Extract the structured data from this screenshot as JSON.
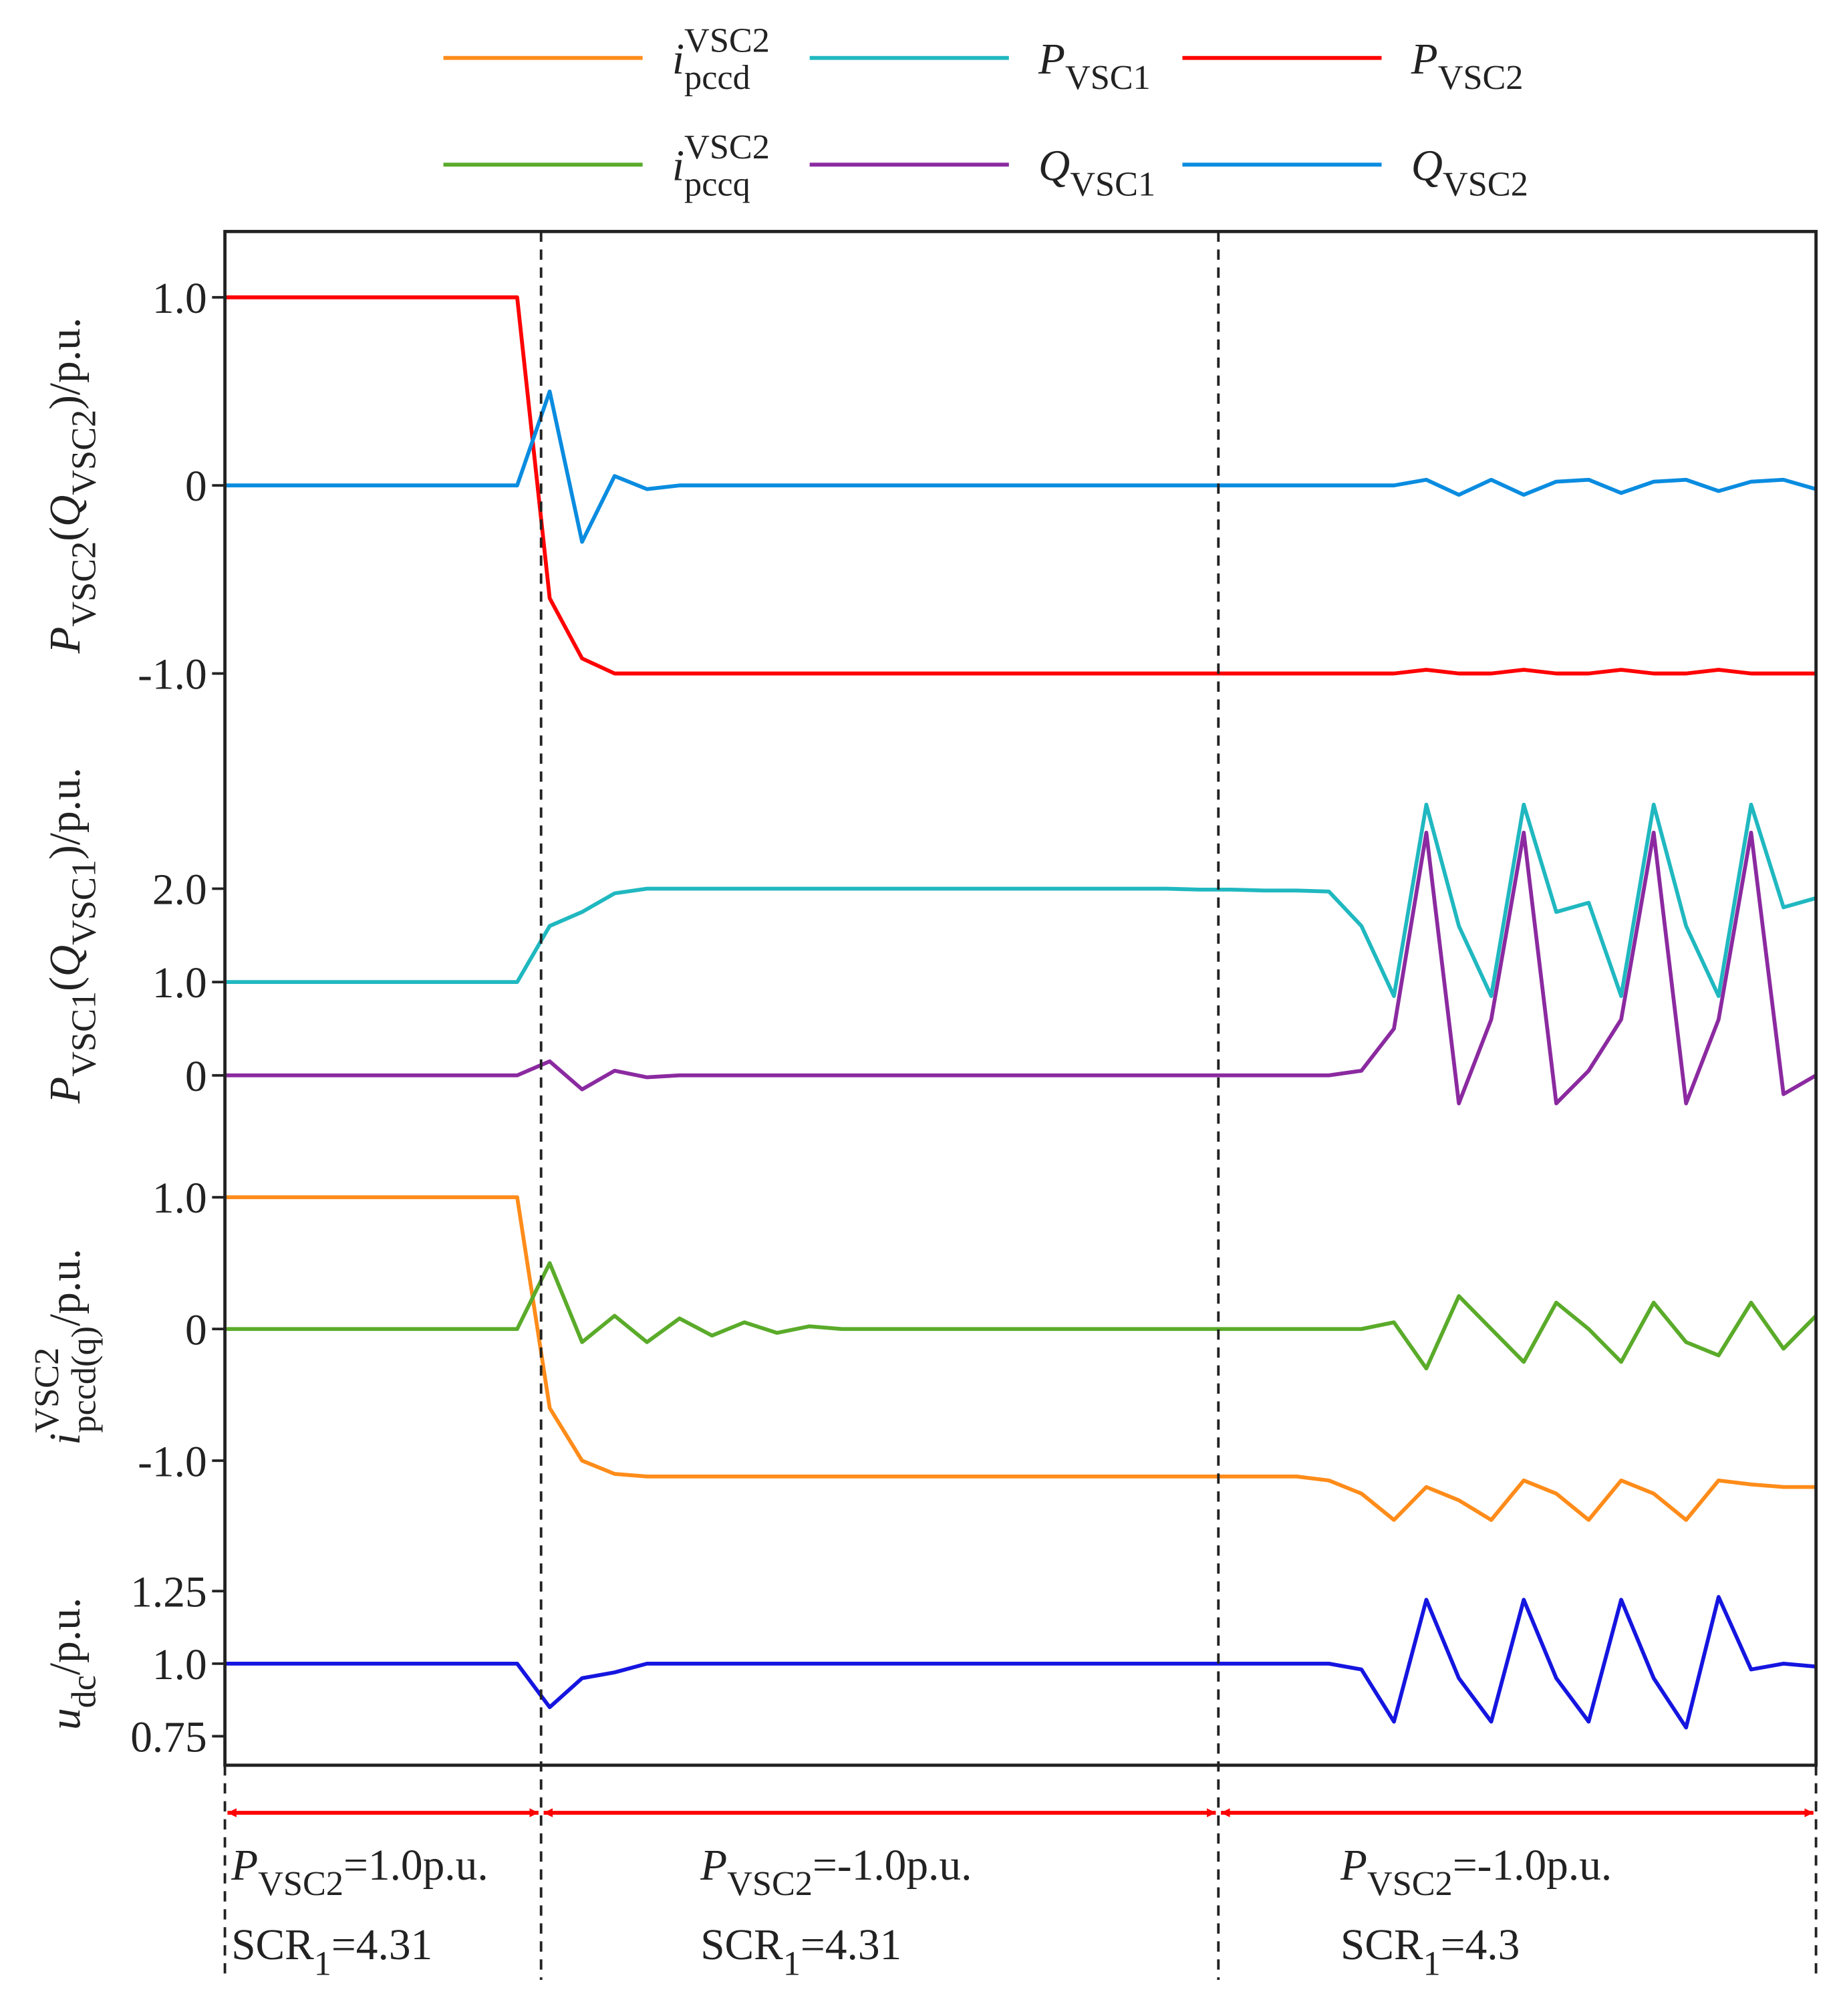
{
  "chart_data": [
    {
      "type": "line",
      "ylim": [
        -1.35,
        1.35
      ],
      "yticks": [
        {
          "value": 1,
          "label": "1.0"
        },
        0,
        {
          "value": -1,
          "label": "-1.0"
        }
      ],
      "ylabel": [
        [
          "P",
          "i"
        ],
        [
          "VSC2",
          "sub"
        ],
        [
          "(",
          "n"
        ],
        [
          "Q",
          "i"
        ],
        [
          "VSC2",
          "sub"
        ],
        [
          ")/p.u.",
          "n"
        ]
      ],
      "series": [
        {
          "name": [
            [
              "P",
              "i"
            ],
            [
              "VSC2",
              "sub"
            ]
          ],
          "color": "#ff0000",
          "values": [
            1,
            1,
            1,
            1,
            1,
            1,
            1,
            1,
            1,
            1,
            -0.6,
            -0.92,
            -1,
            -1,
            -1,
            -1,
            -1,
            -1,
            -1,
            -1,
            -1,
            -1,
            -1,
            -1,
            -1,
            -1,
            -1,
            -1,
            -1,
            -1,
            -1,
            -1,
            -1,
            -1,
            -1,
            -1,
            -1,
            -0.98,
            -1,
            -1,
            -0.98,
            -1,
            -1,
            -0.98,
            -1,
            -1,
            -0.98,
            -1,
            -1,
            -1
          ]
        },
        {
          "name": [
            [
              "Q",
              "i"
            ],
            [
              "VSC2",
              "sub"
            ]
          ],
          "color": "#0a8ce0",
          "values": [
            0,
            0,
            0,
            0,
            0,
            0,
            0,
            0,
            0,
            0,
            0.5,
            -0.3,
            0.05,
            -0.02,
            0,
            0,
            0,
            0,
            0,
            0,
            0,
            0,
            0,
            0,
            0,
            0,
            0,
            0,
            0,
            0,
            0,
            0,
            0,
            0,
            0,
            0,
            0,
            0.03,
            -0.05,
            0.03,
            -0.05,
            0.02,
            0.03,
            -0.04,
            0.02,
            0.03,
            -0.03,
            0.02,
            0.03,
            -0.02
          ]
        }
      ]
    },
    {
      "type": "line",
      "ylim": [
        -0.6,
        3.6
      ],
      "yticks": [
        {
          "value": 2,
          "label": "2.0"
        },
        {
          "value": 1,
          "label": "1.0"
        },
        0
      ],
      "ylabel": [
        [
          "P",
          "i"
        ],
        [
          "VSC1",
          "sub"
        ],
        [
          "(",
          "n"
        ],
        [
          "Q",
          "i"
        ],
        [
          "VSC1",
          "sub"
        ],
        [
          ")/p.u.",
          "n"
        ]
      ],
      "series": [
        {
          "name": [
            [
              "P",
              "i"
            ],
            [
              "VSC1",
              "sub"
            ]
          ],
          "color": "#20b8c0",
          "values": [
            1,
            1,
            1,
            1,
            1,
            1,
            1,
            1,
            1,
            1,
            1.6,
            1.75,
            1.95,
            2,
            2,
            2,
            2,
            2,
            2,
            2,
            2,
            2,
            2,
            2,
            2,
            2,
            2,
            2,
            2,
            2,
            1.99,
            1.99,
            1.98,
            1.98,
            1.97,
            1.6,
            0.85,
            2.9,
            1.6,
            0.85,
            2.9,
            1.75,
            1.85,
            0.85,
            2.9,
            1.6,
            0.85,
            2.9,
            1.8,
            1.9
          ]
        },
        {
          "name": [
            [
              "Q",
              "i"
            ],
            [
              "VSC1",
              "sub"
            ]
          ],
          "color": "#8b2aa0",
          "values": [
            0,
            0,
            0,
            0,
            0,
            0,
            0,
            0,
            0,
            0,
            0.15,
            -0.15,
            0.05,
            -0.02,
            0,
            0,
            0,
            0,
            0,
            0,
            0,
            0,
            0,
            0,
            0,
            0,
            0,
            0,
            0,
            0,
            0,
            0,
            0,
            0,
            0,
            0.05,
            0.5,
            2.6,
            -0.3,
            0.6,
            2.6,
            -0.3,
            0.05,
            0.6,
            2.6,
            -0.3,
            0.6,
            2.6,
            -0.2,
            0
          ]
        }
      ]
    },
    {
      "type": "line",
      "ylim": [
        -1.77,
        1.5
      ],
      "yticks": [
        {
          "value": 1,
          "label": "1.0"
        },
        0,
        {
          "value": -1,
          "label": "-1.0"
        }
      ],
      "ylabel": [
        [
          "i",
          "i"
        ],
        [
          "VSC2",
          "sup"
        ],
        [
          "pccd(q)",
          "sub"
        ],
        [
          "/p.u.",
          "n"
        ]
      ],
      "series": [
        {
          "name": [
            [
              "i",
              "i"
            ],
            [
              "VSC2",
              "sup"
            ],
            [
              "pccd",
              "sub"
            ]
          ],
          "color": "#ff8c1a",
          "values": [
            1,
            1,
            1,
            1,
            1,
            1,
            1,
            1,
            1,
            1,
            -0.6,
            -1,
            -1.1,
            -1.12,
            -1.12,
            -1.12,
            -1.12,
            -1.12,
            -1.12,
            -1.12,
            -1.12,
            -1.12,
            -1.12,
            -1.12,
            -1.12,
            -1.12,
            -1.12,
            -1.12,
            -1.12,
            -1.12,
            -1.12,
            -1.12,
            -1.12,
            -1.12,
            -1.15,
            -1.25,
            -1.45,
            -1.2,
            -1.3,
            -1.45,
            -1.15,
            -1.25,
            -1.45,
            -1.15,
            -1.25,
            -1.45,
            -1.15,
            -1.18,
            -1.2,
            -1.2
          ]
        },
        {
          "name": [
            [
              "i",
              "i"
            ],
            [
              "VSC2",
              "sup"
            ],
            [
              "pccq",
              "sub"
            ]
          ],
          "color": "#5aab2a",
          "values": [
            0,
            0,
            0,
            0,
            0,
            0,
            0,
            0,
            0,
            0,
            0.5,
            -0.1,
            0.1,
            -0.1,
            0.08,
            -0.05,
            0.05,
            -0.03,
            0.02,
            0,
            0,
            0,
            0,
            0,
            0,
            0,
            0,
            0,
            0,
            0,
            0,
            0,
            0,
            0,
            0,
            0,
            0.05,
            -0.3,
            0.25,
            0,
            -0.25,
            0.2,
            0,
            -0.25,
            0.2,
            -0.1,
            -0.2,
            0.2,
            -0.15,
            0.1
          ]
        }
      ]
    },
    {
      "type": "line",
      "ylim": [
        0.65,
        1.35
      ],
      "yticks": [
        1.25,
        {
          "value": 1,
          "label": "1.0"
        },
        0.75
      ],
      "ylabel": [
        [
          "u",
          "i"
        ],
        [
          "dc",
          "sub"
        ],
        [
          "/p.u.",
          "n"
        ]
      ],
      "series": [
        {
          "color": "#1515e0",
          "values": [
            1,
            1,
            1,
            1,
            1,
            1,
            1,
            1,
            1,
            1,
            0.85,
            0.95,
            0.97,
            1,
            1,
            1,
            1,
            1,
            1,
            1,
            1,
            1,
            1,
            1,
            1,
            1,
            1,
            1,
            1,
            1,
            1,
            1,
            1,
            1,
            1,
            0.98,
            0.8,
            1.22,
            0.95,
            0.8,
            1.22,
            0.95,
            0.8,
            1.22,
            0.95,
            0.78,
            1.23,
            0.98,
            1,
            0.99
          ]
        }
      ]
    }
  ],
  "annotations": [
    [
      [
        [
          "P",
          "i"
        ],
        [
          "VSC2",
          "sub"
        ],
        [
          "=1.0p.u.",
          "n"
        ]
      ],
      [
        [
          "SCR",
          "n"
        ],
        [
          "1",
          "sub"
        ],
        [
          "=4.31",
          "n"
        ]
      ]
    ],
    [
      [
        [
          "P",
          "i"
        ],
        [
          "VSC2",
          "sub"
        ],
        [
          "=-1.0p.u.",
          "n"
        ]
      ],
      [
        [
          "SCR",
          "n"
        ],
        [
          "1",
          "sub"
        ],
        [
          "=4.31",
          "n"
        ]
      ]
    ],
    [
      [
        [
          "P",
          "i"
        ],
        [
          "VSC2",
          "sub"
        ],
        [
          "=-1.0p.u.",
          "n"
        ]
      ],
      [
        [
          "SCR",
          "n"
        ],
        [
          "1",
          "sub"
        ],
        [
          "=4.3",
          "n"
        ]
      ]
    ]
  ]
}
